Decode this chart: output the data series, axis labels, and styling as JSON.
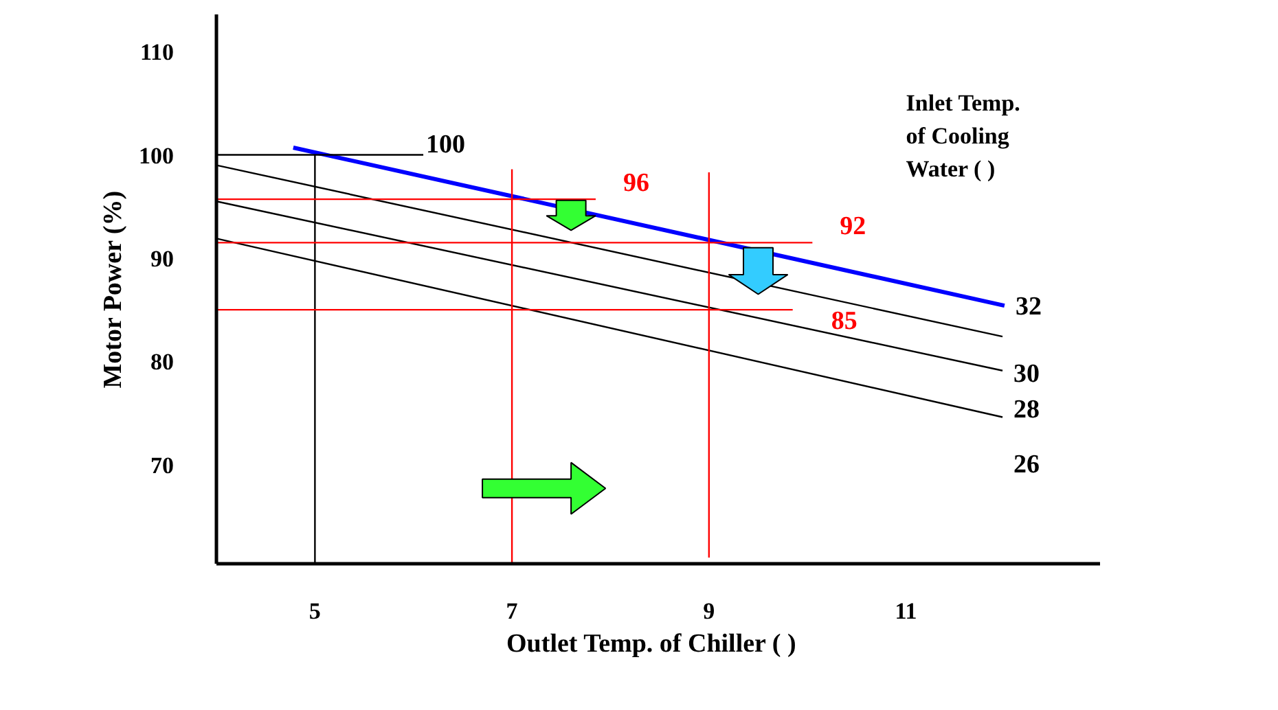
{
  "chart_data": {
    "type": "line",
    "xlabel": "Outlet Temp. of Chiller (   )",
    "ylabel": "Motor Power (%)",
    "legend_title": "Inlet Temp.\nof Cooling\nWater (   )",
    "xlim": [
      4,
      12.97
    ],
    "ylim": [
      60.4,
      113.6
    ],
    "xticks": [
      5,
      7,
      9,
      11
    ],
    "yticks": [
      70,
      80,
      90,
      100,
      110
    ],
    "grid": false,
    "series": [
      {
        "name": "32",
        "color": "#0000ff",
        "x": [
          4.78,
          12.0
        ],
        "values": [
          100.7,
          85.4
        ]
      },
      {
        "name": "30",
        "color": "#000000",
        "x": [
          4.0,
          11.98
        ],
        "values": [
          99.0,
          82.4
        ]
      },
      {
        "name": "28",
        "color": "#000000",
        "x": [
          4.0,
          11.98
        ],
        "values": [
          95.5,
          79.1
        ]
      },
      {
        "name": "26",
        "color": "#000000",
        "x": [
          4.0,
          11.98
        ],
        "values": [
          91.9,
          74.6
        ]
      },
      {
        "color": "#000000",
        "x": [
          4.0,
          6.1
        ],
        "values": [
          100,
          100
        ]
      },
      {
        "color": "#000000",
        "x": [
          5,
          5
        ],
        "values": [
          100,
          60.4
        ]
      },
      {
        "color": "#ff0000",
        "x": [
          4.0,
          7.85
        ],
        "values": [
          95.7,
          95.7
        ]
      },
      {
        "color": "#ff0000",
        "x": [
          4.0,
          10.05
        ],
        "values": [
          91.5,
          91.5
        ]
      },
      {
        "color": "#ff0000",
        "x": [
          4.0,
          9.85
        ],
        "values": [
          85.0,
          85.0
        ]
      },
      {
        "color": "#ff0000",
        "x": [
          7,
          7
        ],
        "values": [
          98.6,
          60.4
        ]
      },
      {
        "color": "#ff0000",
        "x": [
          9,
          9
        ],
        "values": [
          98.3,
          61.0
        ]
      }
    ],
    "annotations": [
      {
        "text": "100",
        "x": 6.1,
        "y": 100
      },
      {
        "text": "96",
        "x": 7.85,
        "y": 95.7
      },
      {
        "text": "92",
        "x": 10.05,
        "y": 91.5
      },
      {
        "text": "85",
        "x": 9.85,
        "y": 85.0
      }
    ]
  }
}
